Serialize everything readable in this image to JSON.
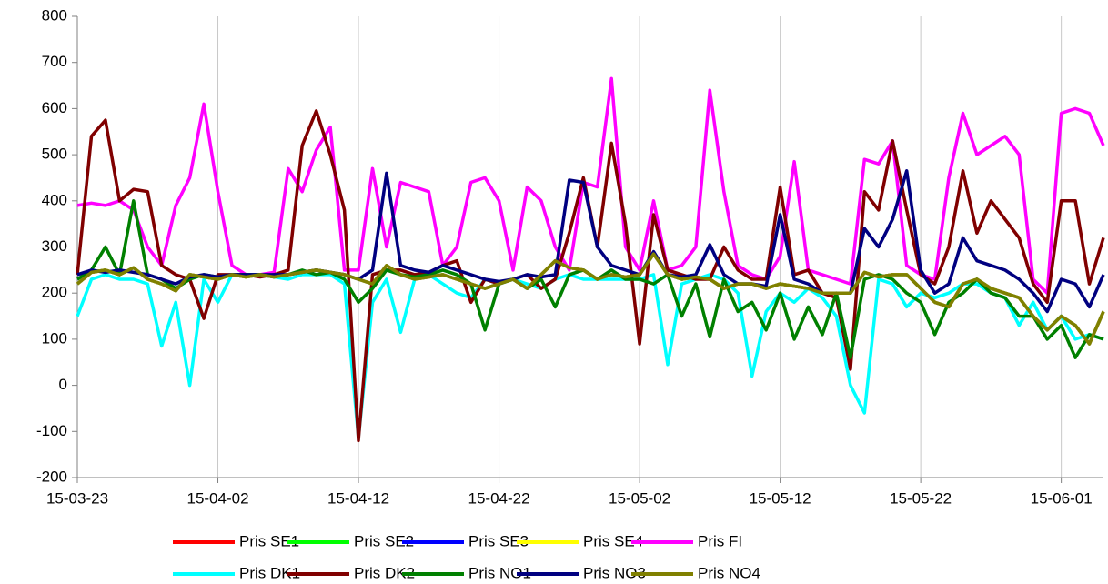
{
  "chart_data": {
    "type": "line",
    "x": [
      "15-03-23",
      "15-03-24",
      "15-03-25",
      "15-03-26",
      "15-03-27",
      "15-03-28",
      "15-03-29",
      "15-03-30",
      "15-03-31",
      "15-04-01",
      "15-04-02",
      "15-04-03",
      "15-04-04",
      "15-04-05",
      "15-04-06",
      "15-04-07",
      "15-04-08",
      "15-04-09",
      "15-04-10",
      "15-04-11",
      "15-04-12",
      "15-04-13",
      "15-04-14",
      "15-04-15",
      "15-04-16",
      "15-04-17",
      "15-04-18",
      "15-04-19",
      "15-04-20",
      "15-04-21",
      "15-04-22",
      "15-04-23",
      "15-04-24",
      "15-04-25",
      "15-04-26",
      "15-04-27",
      "15-04-28",
      "15-04-29",
      "15-04-30",
      "15-05-01",
      "15-05-02",
      "15-05-03",
      "15-05-04",
      "15-05-05",
      "15-05-06",
      "15-05-07",
      "15-05-08",
      "15-05-09",
      "15-05-10",
      "15-05-11",
      "15-05-12",
      "15-05-13",
      "15-05-14",
      "15-05-15",
      "15-05-16",
      "15-05-17",
      "15-05-18",
      "15-05-19",
      "15-05-20",
      "15-05-21",
      "15-05-22",
      "15-05-23",
      "15-05-24",
      "15-05-25",
      "15-05-26",
      "15-05-27",
      "15-05-28",
      "15-05-29",
      "15-05-30",
      "15-05-31",
      "15-06-01",
      "15-06-02",
      "15-06-03",
      "15-06-04"
    ],
    "xlim": [
      "15-03-23",
      "15-06-04"
    ],
    "xticks": [
      "15-03-23",
      "15-04-02",
      "15-04-12",
      "15-04-22",
      "15-05-02",
      "15-05-12",
      "15-05-22",
      "15-06-01"
    ],
    "ylim": [
      -200,
      800
    ],
    "yticks": [
      -200,
      -100,
      0,
      100,
      200,
      300,
      400,
      500,
      600,
      700,
      800
    ],
    "grid": "x",
    "series": [
      {
        "name": "Pris SE1",
        "color": "#ff0000",
        "values": [
          220,
          245,
          250,
          240,
          255,
          230,
          220,
          205,
          240,
          235,
          230,
          240,
          235,
          240,
          235,
          240,
          245,
          250,
          245,
          240,
          230,
          220,
          260,
          240,
          230,
          235,
          240,
          230,
          220,
          210,
          220,
          230,
          210,
          240,
          270,
          255,
          250,
          230,
          240,
          235,
          240,
          285,
          240,
          230,
          235,
          230,
          210,
          220,
          220,
          210,
          220,
          215,
          210,
          200,
          200,
          200,
          245,
          235,
          240,
          240,
          210,
          180,
          170,
          220,
          230,
          210,
          200,
          190,
          150,
          120,
          150,
          130,
          90,
          160
        ]
      },
      {
        "name": "Pris SE2",
        "color": "#00ff00",
        "values": [
          220,
          245,
          250,
          240,
          255,
          230,
          220,
          205,
          240,
          235,
          230,
          240,
          235,
          240,
          235,
          240,
          245,
          250,
          245,
          240,
          230,
          220,
          260,
          240,
          230,
          235,
          240,
          230,
          220,
          210,
          220,
          230,
          210,
          240,
          270,
          255,
          250,
          230,
          240,
          235,
          240,
          285,
          240,
          230,
          235,
          230,
          210,
          220,
          220,
          210,
          220,
          215,
          210,
          200,
          200,
          200,
          245,
          235,
          240,
          240,
          210,
          180,
          170,
          220,
          230,
          210,
          200,
          190,
          150,
          120,
          150,
          130,
          90,
          160
        ]
      },
      {
        "name": "Pris SE3",
        "color": "#0000ff",
        "values": [
          220,
          245,
          250,
          240,
          255,
          230,
          220,
          205,
          240,
          235,
          230,
          240,
          235,
          240,
          235,
          240,
          245,
          250,
          245,
          240,
          230,
          220,
          260,
          240,
          230,
          235,
          240,
          230,
          220,
          210,
          220,
          230,
          210,
          240,
          270,
          255,
          250,
          230,
          240,
          235,
          240,
          285,
          240,
          230,
          235,
          230,
          210,
          220,
          220,
          210,
          220,
          215,
          210,
          200,
          200,
          200,
          245,
          235,
          240,
          240,
          210,
          180,
          170,
          220,
          230,
          210,
          200,
          190,
          150,
          120,
          150,
          130,
          90,
          160
        ]
      },
      {
        "name": "Pris SE4",
        "color": "#ffff00",
        "values": [
          220,
          245,
          250,
          240,
          255,
          230,
          220,
          205,
          240,
          235,
          230,
          240,
          235,
          240,
          235,
          240,
          245,
          250,
          245,
          240,
          230,
          220,
          260,
          240,
          230,
          235,
          240,
          230,
          220,
          210,
          220,
          230,
          210,
          240,
          270,
          255,
          250,
          230,
          240,
          235,
          240,
          285,
          240,
          230,
          235,
          230,
          210,
          220,
          220,
          210,
          220,
          215,
          210,
          200,
          200,
          200,
          245,
          235,
          240,
          240,
          210,
          180,
          170,
          220,
          230,
          210,
          200,
          190,
          150,
          120,
          150,
          130,
          90,
          160
        ]
      },
      {
        "name": "Pris FI",
        "color": "#ff00ff",
        "values": [
          390,
          395,
          390,
          400,
          380,
          300,
          260,
          390,
          450,
          610,
          420,
          260,
          240,
          240,
          245,
          470,
          420,
          510,
          560,
          250,
          250,
          470,
          300,
          440,
          430,
          420,
          260,
          300,
          440,
          450,
          400,
          250,
          430,
          400,
          300,
          250,
          440,
          430,
          665,
          300,
          250,
          400,
          250,
          260,
          300,
          640,
          420,
          260,
          240,
          230,
          280,
          485,
          250,
          240,
          230,
          220,
          490,
          480,
          530,
          260,
          240,
          230,
          450,
          590,
          500,
          520,
          540,
          500,
          230,
          200,
          590,
          600,
          590,
          520
        ]
      },
      {
        "name": "Pris DK1",
        "color": "#00ffff",
        "values": [
          150,
          230,
          240,
          230,
          230,
          220,
          85,
          180,
          0,
          230,
          180,
          240,
          240,
          240,
          235,
          230,
          240,
          240,
          240,
          220,
          -115,
          180,
          230,
          115,
          230,
          240,
          220,
          200,
          190,
          230,
          220,
          230,
          220,
          210,
          230,
          240,
          230,
          230,
          230,
          230,
          230,
          240,
          45,
          220,
          230,
          240,
          230,
          200,
          20,
          160,
          200,
          180,
          210,
          190,
          150,
          0,
          -60,
          230,
          220,
          170,
          200,
          190,
          200,
          220,
          220,
          200,
          190,
          130,
          180,
          120,
          150,
          100,
          110,
          100
        ]
      },
      {
        "name": "Pris DK2",
        "color": "#800000",
        "values": [
          240,
          540,
          575,
          400,
          425,
          420,
          260,
          240,
          230,
          145,
          240,
          240,
          240,
          235,
          240,
          250,
          520,
          595,
          500,
          380,
          -120,
          240,
          250,
          250,
          240,
          245,
          260,
          270,
          180,
          230,
          220,
          230,
          240,
          210,
          230,
          330,
          450,
          300,
          525,
          350,
          90,
          370,
          250,
          240,
          230,
          230,
          300,
          250,
          230,
          230,
          430,
          240,
          250,
          200,
          190,
          35,
          420,
          380,
          530,
          380,
          240,
          220,
          300,
          465,
          330,
          400,
          360,
          320,
          220,
          180,
          400,
          400,
          220,
          320
        ]
      },
      {
        "name": "Pris NO1",
        "color": "#008000",
        "values": [
          230,
          250,
          300,
          240,
          400,
          240,
          230,
          210,
          230,
          240,
          235,
          240,
          240,
          240,
          235,
          240,
          250,
          240,
          245,
          230,
          180,
          210,
          250,
          240,
          235,
          240,
          250,
          240,
          220,
          120,
          220,
          230,
          210,
          230,
          170,
          240,
          250,
          230,
          250,
          230,
          230,
          220,
          240,
          150,
          220,
          105,
          230,
          160,
          180,
          120,
          200,
          100,
          170,
          110,
          200,
          60,
          230,
          240,
          230,
          200,
          180,
          110,
          180,
          200,
          230,
          200,
          190,
          150,
          150,
          100,
          130,
          60,
          110,
          100
        ]
      },
      {
        "name": "Pris NO3",
        "color": "#000080",
        "values": [
          240,
          250,
          245,
          250,
          245,
          240,
          230,
          220,
          235,
          240,
          235,
          240,
          240,
          240,
          240,
          240,
          245,
          250,
          245,
          240,
          230,
          250,
          460,
          260,
          250,
          245,
          260,
          250,
          240,
          230,
          225,
          230,
          240,
          235,
          240,
          445,
          440,
          300,
          260,
          250,
          240,
          290,
          240,
          235,
          240,
          305,
          240,
          220,
          220,
          215,
          370,
          230,
          220,
          200,
          200,
          200,
          340,
          300,
          360,
          465,
          250,
          200,
          220,
          320,
          270,
          260,
          250,
          230,
          200,
          160,
          230,
          220,
          170,
          240
        ]
      },
      {
        "name": "Pris NO4",
        "color": "#808000",
        "values": [
          220,
          245,
          250,
          240,
          255,
          230,
          220,
          205,
          240,
          235,
          230,
          240,
          235,
          240,
          235,
          240,
          245,
          250,
          245,
          240,
          230,
          220,
          260,
          240,
          230,
          235,
          240,
          230,
          220,
          210,
          220,
          230,
          210,
          240,
          270,
          255,
          250,
          230,
          240,
          235,
          240,
          285,
          240,
          230,
          235,
          230,
          210,
          220,
          220,
          210,
          220,
          215,
          210,
          200,
          200,
          200,
          245,
          235,
          240,
          240,
          210,
          180,
          170,
          220,
          230,
          210,
          200,
          190,
          150,
          120,
          150,
          130,
          90,
          160
        ]
      }
    ]
  }
}
